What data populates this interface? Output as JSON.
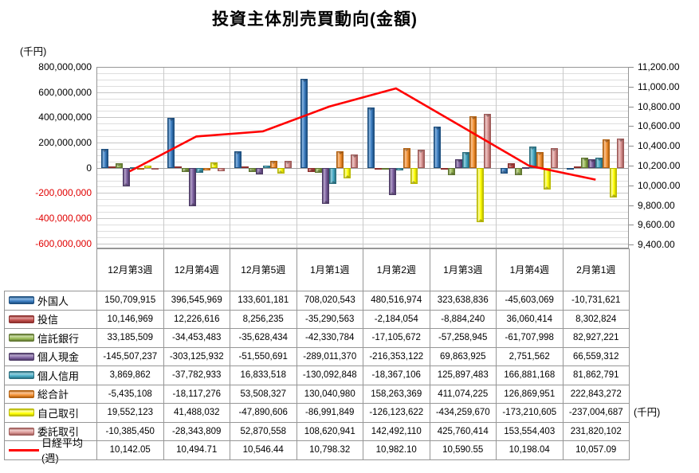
{
  "title": "投資主体別売買動向(金額)",
  "left_axis": {
    "unit_label": "(千円)",
    "ticks": [
      {
        "label": "800,000,000",
        "v": 800000000
      },
      {
        "label": "600,000,000",
        "v": 600000000
      },
      {
        "label": "400,000,000",
        "v": 400000000
      },
      {
        "label": "200,000,000",
        "v": 200000000
      },
      {
        "label": "0",
        "v": 0
      },
      {
        "label": "-200,000,000",
        "v": -200000000
      },
      {
        "label": "-400,000,000",
        "v": -400000000
      },
      {
        "label": "-600,000,000",
        "v": -600000000
      }
    ]
  },
  "right_axis": {
    "unit_label": "(千円)",
    "ticks": [
      {
        "label": "11,200.00",
        "v": 11200
      },
      {
        "label": "11,000.00",
        "v": 11000
      },
      {
        "label": "10,800.00",
        "v": 10800
      },
      {
        "label": "10,600.00",
        "v": 10600
      },
      {
        "label": "10,400.00",
        "v": 10400
      },
      {
        "label": "10,200.00",
        "v": 10200
      },
      {
        "label": "10,000.00",
        "v": 10000
      },
      {
        "label": "9,800.00",
        "v": 9800
      },
      {
        "label": "9,600.00",
        "v": 9600
      },
      {
        "label": "9,400.00",
        "v": 9400
      }
    ]
  },
  "chart_data": {
    "type": "bar+line",
    "title": "投資主体別売買動向(金額)",
    "categories": [
      "12月第3週",
      "12月第4週",
      "12月第5週",
      "1月第1週",
      "1月第2週",
      "1月第3週",
      "1月第4週",
      "2月第1週"
    ],
    "left_ylim": [
      -640000000,
      800000000
    ],
    "right_ylim": [
      9360,
      11200
    ],
    "left_major": 200000000,
    "left_minor": 50000000,
    "right_major": 200,
    "grid": true,
    "legend_position": "table-left",
    "series": [
      {
        "name": "外国人",
        "type": "bar",
        "color": "#3a7bbf",
        "light": "#8ab6e2",
        "dark": "#1c4e7e",
        "values": [
          150709915,
          396545969,
          133601181,
          708020543,
          480516974,
          323638836,
          -45603069,
          -10731621
        ]
      },
      {
        "name": "投信",
        "type": "bar",
        "color": "#be4b48",
        "light": "#e09b99",
        "dark": "#8c2e2c",
        "values": [
          10146969,
          12226616,
          8256235,
          -35290563,
          -2184054,
          -8884240,
          36060414,
          8302824
        ]
      },
      {
        "name": "信託銀行",
        "type": "bar",
        "color": "#98b954",
        "light": "#c9dba2",
        "dark": "#5f7530",
        "values": [
          33185509,
          -34453483,
          -35628434,
          -42330784,
          -17105672,
          -57258945,
          -61707998,
          82927221
        ]
      },
      {
        "name": "個人現金",
        "type": "bar",
        "color": "#7d60a0",
        "light": "#b5a4ca",
        "dark": "#4d3a66",
        "values": [
          -145507237,
          -303125932,
          -51550691,
          -289011370,
          -216353122,
          69863925,
          2751562,
          66559312
        ]
      },
      {
        "name": "個人信用",
        "type": "bar",
        "color": "#45aac5",
        "light": "#97d0de",
        "dark": "#2a6e7e",
        "values": [
          3869862,
          -37782933,
          16833518,
          -130092848,
          -18367106,
          125897483,
          166881168,
          81862791
        ]
      },
      {
        "name": "総合計",
        "type": "bar",
        "color": "#f49234",
        "light": "#fac493",
        "dark": "#b05f0f",
        "values": [
          -5435108,
          -18117276,
          53508327,
          130040980,
          158263369,
          411074225,
          126869951,
          222843272
        ]
      },
      {
        "name": "自己取引",
        "type": "bar",
        "color": "#ffff00",
        "light": "#ffffa0",
        "dark": "#b8b800",
        "values": [
          19552123,
          41488032,
          -47890606,
          -86991849,
          -126123622,
          -434259670,
          -173210605,
          -237004687
        ]
      },
      {
        "name": "委託取引",
        "type": "bar",
        "color": "#d99694",
        "light": "#efcac9",
        "dark": "#9e5a58",
        "values": [
          -10385450,
          -28343809,
          52870558,
          108620941,
          142492110,
          425760414,
          153554403,
          231820102
        ]
      },
      {
        "name": "日経平均(週)",
        "type": "line",
        "axis": "right",
        "color": "#ff0000",
        "values": [
          10142.05,
          10494.71,
          10546.44,
          10798.32,
          10982.1,
          10590.55,
          10198.04,
          10057.09
        ]
      }
    ]
  },
  "table": {
    "columns": [
      "12月第3週",
      "12月第4週",
      "12月第5週",
      "1月第1週",
      "1月第2週",
      "1月第3週",
      "1月第4週",
      "2月第1週"
    ],
    "rows": [
      {
        "label": "外国人",
        "cells": [
          "150,709,915",
          "396,545,969",
          "133,601,181",
          "708,020,543",
          "480,516,974",
          "323,638,836",
          "-45,603,069",
          "-10,731,621"
        ]
      },
      {
        "label": "投信",
        "cells": [
          "10,146,969",
          "12,226,616",
          "8,256,235",
          "-35,290,563",
          "-2,184,054",
          "-8,884,240",
          "36,060,414",
          "8,302,824"
        ]
      },
      {
        "label": "信託銀行",
        "cells": [
          "33,185,509",
          "-34,453,483",
          "-35,628,434",
          "-42,330,784",
          "-17,105,672",
          "-57,258,945",
          "-61,707,998",
          "82,927,221"
        ]
      },
      {
        "label": "個人現金",
        "cells": [
          "-145,507,237",
          "-303,125,932",
          "-51,550,691",
          "-289,011,370",
          "-216,353,122",
          "69,863,925",
          "2,751,562",
          "66,559,312"
        ]
      },
      {
        "label": "個人信用",
        "cells": [
          "3,869,862",
          "-37,782,933",
          "16,833,518",
          "-130,092,848",
          "-18,367,106",
          "125,897,483",
          "166,881,168",
          "81,862,791"
        ]
      },
      {
        "label": "総合計",
        "cells": [
          "-5,435,108",
          "-18,117,276",
          "53,508,327",
          "130,040,980",
          "158,263,369",
          "411,074,225",
          "126,869,951",
          "222,843,272"
        ]
      },
      {
        "label": "自己取引",
        "cells": [
          "19,552,123",
          "41,488,032",
          "-47,890,606",
          "-86,991,849",
          "-126,123,622",
          "-434,259,670",
          "-173,210,605",
          "-237,004,687"
        ]
      },
      {
        "label": "委託取引",
        "cells": [
          "-10,385,450",
          "-28,343,809",
          "52,870,558",
          "108,620,941",
          "142,492,110",
          "425,760,414",
          "153,554,403",
          "231,820,102"
        ]
      },
      {
        "label": "日経平均(週)",
        "cells": [
          "10,142.05",
          "10,494.71",
          "10,546.44",
          "10,798.32",
          "10,982.10",
          "10,590.55",
          "10,198.04",
          "10,057.09"
        ]
      }
    ]
  }
}
